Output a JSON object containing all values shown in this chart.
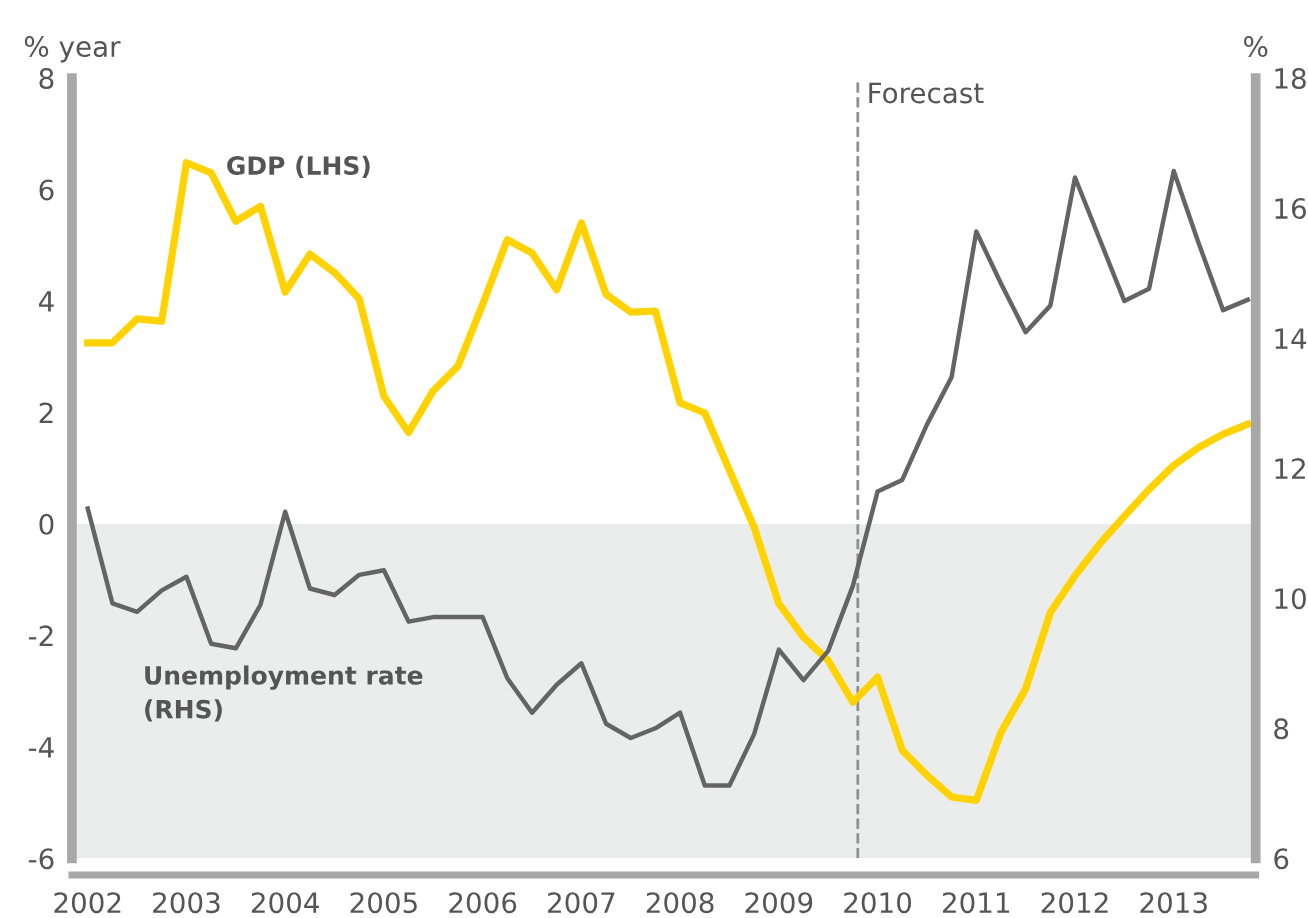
{
  "chart_data": {
    "type": "line",
    "ylabel": "% year",
    "y2label": "%",
    "x": [
      2002,
      2002.25,
      2002.5,
      2002.75,
      2003,
      2003.25,
      2003.5,
      2003.75,
      2004,
      2004.25,
      2004.5,
      2004.75,
      2005,
      2005.25,
      2005.5,
      2005.75,
      2006,
      2006.25,
      2006.5,
      2006.75,
      2007,
      2007.25,
      2007.5,
      2007.75,
      2008,
      2008.25,
      2008.5,
      2008.75,
      2009,
      2009.25,
      2009.5,
      2009.75,
      2010,
      2010.25,
      2010.5,
      2010.75,
      2011,
      2011.25,
      2011.5,
      2011.75,
      2012,
      2012.25,
      2012.5,
      2012.75,
      2013,
      2013.25,
      2013.5,
      2013.75
    ],
    "series": [
      {
        "name": "GDP (LHS)",
        "color": "#ffd200",
        "values": [
          3.25,
          3.25,
          3.68,
          3.64,
          6.48,
          6.3,
          5.43,
          5.7,
          4.16,
          4.84,
          4.51,
          4.04,
          2.29,
          1.64,
          2.39,
          2.83,
          3.94,
          5.1,
          4.86,
          4.2,
          5.4,
          4.12,
          3.8,
          3.82,
          2.17,
          1.99,
          0.96,
          -0.06,
          -1.43,
          -2.03,
          -2.45,
          -3.2,
          -2.75,
          -4.06,
          -4.51,
          -4.9,
          -4.96,
          -3.74,
          -2.96,
          -1.59,
          -0.93,
          -0.36,
          0.14,
          0.62,
          1.05,
          1.37,
          1.61,
          1.79
        ]
      },
      {
        "name": "Unemployment rate\n(RHS)",
        "color": "#646464",
        "axis": "y2",
        "values": [
          11.38,
          9.92,
          9.79,
          10.12,
          10.33,
          9.3,
          9.23,
          9.9,
          11.33,
          10.15,
          10.05,
          10.36,
          10.43,
          9.64,
          9.71,
          9.71,
          9.71,
          8.77,
          8.24,
          8.67,
          9.0,
          8.07,
          7.85,
          8.0,
          8.24,
          7.12,
          7.12,
          7.91,
          9.21,
          8.74,
          9.19,
          10.19,
          11.64,
          11.82,
          12.67,
          13.4,
          15.64,
          14.84,
          14.09,
          14.5,
          16.47,
          15.52,
          14.57,
          14.76,
          16.57,
          15.47,
          14.43,
          14.59
        ]
      }
    ],
    "xlim": [
      2001.84,
      2013.83
    ],
    "xticks": [
      2002,
      2003,
      2004,
      2005,
      2006,
      2007,
      2008,
      2009,
      2010,
      2011,
      2012,
      2013
    ],
    "ylim": [
      -6,
      8
    ],
    "yticks": [
      -6,
      -4,
      -2,
      0,
      2,
      4,
      6,
      8
    ],
    "y2lim": [
      6,
      18
    ],
    "y2ticks": [
      6,
      8,
      10,
      12,
      14,
      16,
      18
    ],
    "ref_lines": [
      {
        "axis": "x",
        "value": 2009.8,
        "label": "Forecast",
        "color": "#909090",
        "line_style": "dashed"
      }
    ],
    "bands": [
      {
        "axis": "y",
        "from": -6,
        "to": 0,
        "color": "#ebecec"
      }
    ],
    "grid": false,
    "legend": false,
    "marker": "none",
    "line_style": "solid"
  }
}
